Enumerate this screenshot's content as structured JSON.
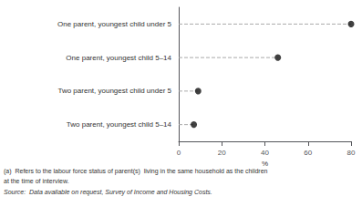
{
  "chart_data": {
    "type": "lollipop",
    "orientation": "horizontal",
    "categories": [
      "One parent, youngest child under 5",
      "One parent, youngest child 5–14",
      "Two parent, youngest child under 5",
      "Two parent, youngest child 5–14"
    ],
    "values": [
      80,
      46,
      9,
      7
    ],
    "color": "#111111",
    "marker": "circle",
    "line_style": "dashed",
    "xlabel": "%",
    "xlim": [
      0,
      80
    ],
    "xticks": [
      0,
      20,
      40,
      60,
      80
    ],
    "grid": false,
    "annotations": [
      "(a)  Refers to the labour force status of parent(s)  living in the same household as the children",
      "at the time of interview.",
      "Source:  Data available on request, Survey of Income and Housing Costs."
    ]
  }
}
